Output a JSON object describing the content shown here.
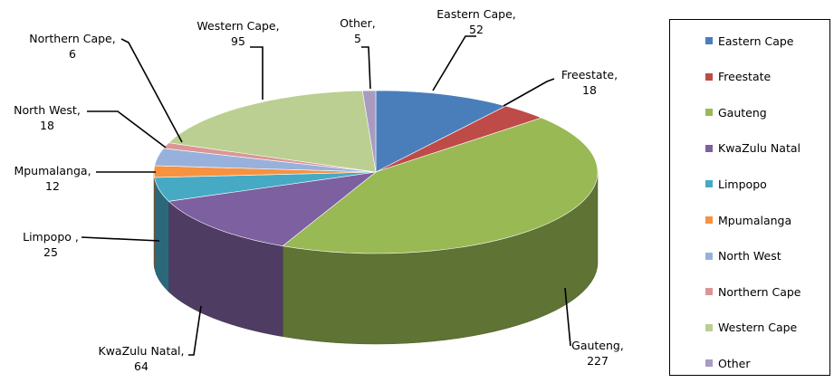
{
  "chart_data": {
    "type": "pie",
    "style": "3d-pie",
    "categories": [
      "Eastern Cape",
      "Freestate",
      "Gauteng",
      "KwaZulu Natal",
      "Limpopo",
      "Mpumalanga",
      "North West",
      "Northern Cape",
      "Western Cape",
      "Other"
    ],
    "values": [
      52,
      18,
      227,
      64,
      25,
      12,
      18,
      6,
      95,
      5
    ],
    "colors": [
      "#4A7EBB",
      "#BE4B48",
      "#98B954",
      "#7D60A0",
      "#46AAC5",
      "#F69240",
      "#98B1DC",
      "#DA9695",
      "#BACF91",
      "#A99BC0"
    ],
    "data_labels": [
      {
        "line1": "Eastern Cape,",
        "line2": "52"
      },
      {
        "line1": "Freestate,",
        "line2": "18"
      },
      {
        "line1": "Gauteng,",
        "line2": "227"
      },
      {
        "line1": "KwaZulu Natal,",
        "line2": "64"
      },
      {
        "line1": "Limpopo ,",
        "line2": "25"
      },
      {
        "line1": "Mpumalanga,",
        "line2": "12"
      },
      {
        "line1": "North West,",
        "line2": "18"
      },
      {
        "line1": "Northern Cape,",
        "line2": "6"
      },
      {
        "line1": "Western Cape,",
        "line2": "95"
      },
      {
        "line1": "Other,",
        "line2": "5"
      }
    ],
    "legend": {
      "position": "right",
      "entries": [
        "Eastern Cape",
        "Freestate",
        "Gauteng",
        "KwaZulu Natal",
        "Limpopo",
        "Mpumalanga",
        "North West",
        "Northern Cape",
        "Western Cape",
        "Other"
      ]
    }
  }
}
